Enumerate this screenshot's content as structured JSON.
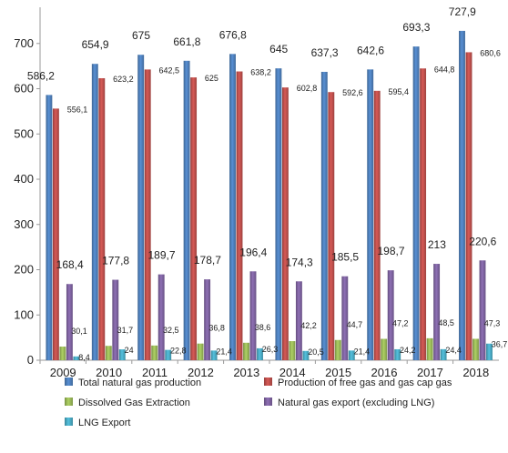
{
  "chart_data": {
    "type": "bar",
    "title": "",
    "xlabel": "",
    "ylabel": "",
    "ylim": [
      0,
      780
    ],
    "yticks": [
      0,
      100,
      200,
      300,
      400,
      500,
      600,
      700
    ],
    "grid": false,
    "legend_position": "bottom",
    "categories": [
      "2009",
      "2010",
      "2011",
      "2012",
      "2013",
      "2014",
      "2015",
      "2016",
      "2017",
      "2018"
    ],
    "series": [
      {
        "name": "Total natural gas production",
        "color": "#4F81BD",
        "values": [
          586.2,
          654.9,
          675,
          661.8,
          676.8,
          645,
          637.3,
          642.6,
          693.3,
          727.9
        ],
        "labels": [
          "586,2",
          "654,9",
          "675",
          "661,8",
          "676,8",
          "645",
          "637,3",
          "642,6",
          "693,3",
          "727,9"
        ]
      },
      {
        "name": "Production of free gas and gas cap gas",
        "color": "#C0504D",
        "values": [
          556.1,
          623.2,
          642.5,
          625,
          638.2,
          602.8,
          592.6,
          595.4,
          644.8,
          680.6
        ],
        "labels": [
          "556,1",
          "623,2",
          "642,5",
          "625",
          "638,2",
          "602,8",
          "592,6",
          "595,4",
          "644,8",
          "680,6"
        ]
      },
      {
        "name": "Dissolved Gas Extraction",
        "color": "#9BBB59",
        "values": [
          30.1,
          31.7,
          32.5,
          36.8,
          38.6,
          42.2,
          44.7,
          47.2,
          48.5,
          47.3
        ],
        "labels": [
          "30,1",
          "31,7",
          "32,5",
          "36,8",
          "38,6",
          "42,2",
          "44,7",
          "47,2",
          "48,5",
          "47,3"
        ]
      },
      {
        "name": "Natural gas export (excluding LNG)",
        "color": "#8064A2",
        "values": [
          168.4,
          177.8,
          189.7,
          178.7,
          196.4,
          174.3,
          185.5,
          198.7,
          213,
          220.6
        ],
        "labels": [
          "168,4",
          "177,8",
          "189,7",
          "178,7",
          "196,4",
          "174,3",
          "185,5",
          "198,7",
          "213",
          "220,6"
        ]
      },
      {
        "name": "LNG Export",
        "color": "#4BACC6",
        "values": [
          8.4,
          24,
          22.8,
          21.4,
          26.3,
          20.5,
          21.4,
          24.2,
          24.4,
          36.7
        ],
        "labels": [
          "8,4",
          "24",
          "22,8",
          "21,4",
          "26,3",
          "20,5",
          "21,4",
          "24,2",
          "24,4",
          "36,7"
        ]
      }
    ]
  }
}
